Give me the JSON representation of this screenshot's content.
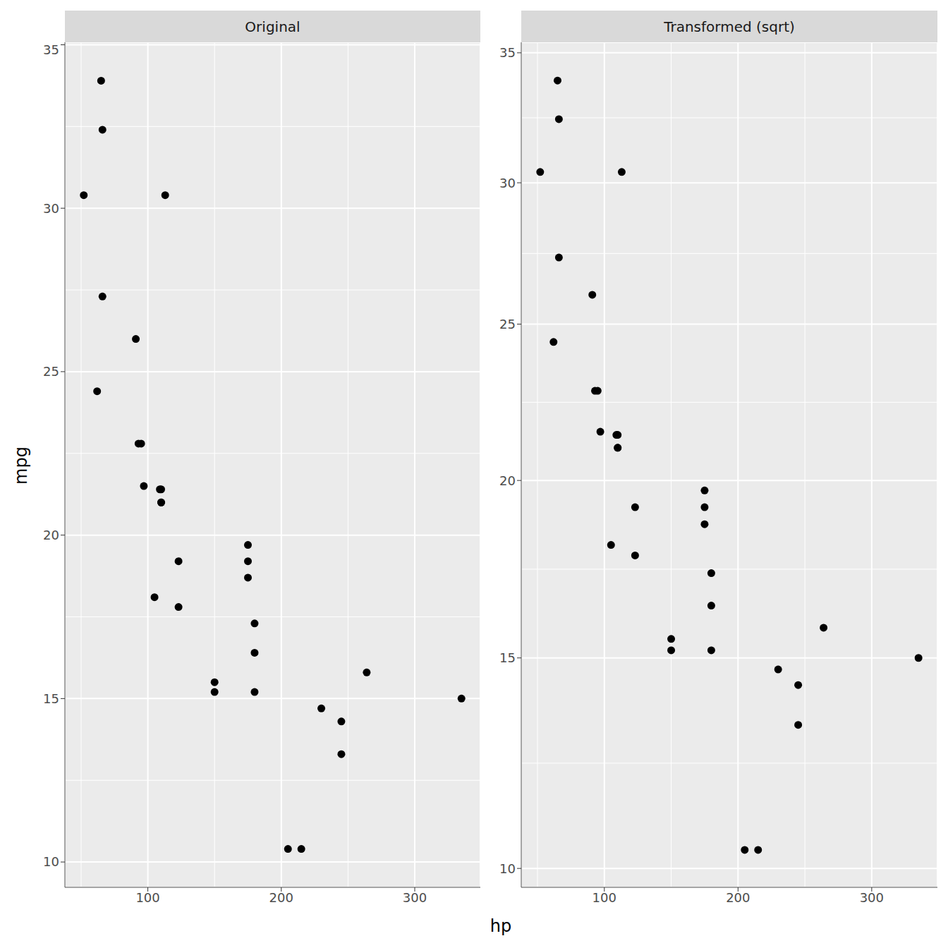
{
  "chart_data": [
    {
      "type": "scatter",
      "title": "Original",
      "xlabel": "hp",
      "ylabel": "mpg",
      "color": "#000000",
      "grid": true,
      "x": [
        110,
        110,
        93,
        110,
        175,
        105,
        245,
        62,
        95,
        123,
        123,
        180,
        180,
        180,
        205,
        215,
        230,
        66,
        52,
        65,
        97,
        150,
        150,
        245,
        175,
        66,
        91,
        113,
        264,
        175,
        335,
        109
      ],
      "values": [
        21.0,
        21.0,
        22.8,
        21.4,
        18.7,
        18.1,
        14.3,
        24.4,
        22.8,
        19.2,
        17.8,
        16.4,
        17.3,
        15.2,
        10.4,
        10.4,
        14.7,
        32.4,
        30.4,
        33.9,
        21.5,
        15.5,
        15.2,
        13.3,
        19.2,
        27.3,
        26.0,
        30.4,
        15.8,
        19.7,
        15.0,
        21.4
      ],
      "xlim": [
        37.85,
        349.15
      ],
      "ylim": [
        9.225,
        35.075
      ],
      "xticks": [
        100,
        200,
        300
      ],
      "yticks": [
        10,
        15,
        20,
        25,
        30,
        35
      ]
    },
    {
      "type": "scatter",
      "title": "Transformed (sqrt)",
      "color": "#000000",
      "grid": true,
      "x": [
        110,
        110,
        93,
        110,
        175,
        105,
        245,
        62,
        95,
        123,
        123,
        180,
        180,
        180,
        205,
        215,
        230,
        66,
        52,
        65,
        97,
        150,
        150,
        245,
        175,
        66,
        91,
        113,
        264,
        175,
        335,
        109
      ],
      "values": [
        21.0,
        21.0,
        22.8,
        21.4,
        18.7,
        18.1,
        14.3,
        24.4,
        22.8,
        19.2,
        17.8,
        16.4,
        17.3,
        15.2,
        10.4,
        10.4,
        14.7,
        32.4,
        30.4,
        33.9,
        21.5,
        15.5,
        15.2,
        13.3,
        19.2,
        27.3,
        26.0,
        30.4,
        15.8,
        19.7,
        15.0,
        21.4
      ],
      "xlim": [
        37.85,
        349.15
      ],
      "ylim": [
        9.6,
        35.42
      ],
      "xticks": [
        100,
        200,
        300
      ],
      "yticks": [
        10,
        15,
        20,
        25,
        30,
        35
      ]
    }
  ]
}
